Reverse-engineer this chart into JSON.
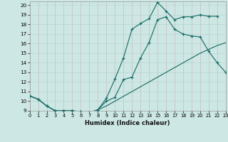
{
  "xlabel": "Humidex (Indice chaleur)",
  "background_color": "#cde8e4",
  "grid_color": "#b2d0cc",
  "line_color": "#1e6e6a",
  "xlim": [
    0,
    23
  ],
  "ylim": [
    9,
    20.4
  ],
  "xticks": [
    0,
    1,
    2,
    3,
    4,
    5,
    6,
    7,
    8,
    9,
    10,
    11,
    12,
    13,
    14,
    15,
    16,
    17,
    18,
    19,
    20,
    21,
    22,
    23
  ],
  "yticks": [
    9,
    10,
    11,
    12,
    13,
    14,
    15,
    16,
    17,
    18,
    19,
    20
  ],
  "line_top": {
    "x": [
      0,
      1,
      2,
      3,
      4,
      5,
      6,
      7,
      8,
      9,
      10,
      11,
      12,
      13,
      14,
      15,
      16,
      17,
      18,
      19,
      20,
      21,
      22
    ],
    "y": [
      10.55,
      10.2,
      9.5,
      9.0,
      9.0,
      9.0,
      8.9,
      8.8,
      9.1,
      10.3,
      12.3,
      14.5,
      17.5,
      18.1,
      18.6,
      20.3,
      19.4,
      18.5,
      18.8,
      18.8,
      19.0,
      18.85,
      18.85
    ]
  },
  "line_mid": {
    "x": [
      0,
      1,
      2,
      3,
      4,
      5,
      6,
      7,
      8,
      9,
      10,
      11,
      12,
      13,
      14,
      15,
      16,
      17,
      18,
      19,
      20,
      21,
      22,
      23
    ],
    "y": [
      10.55,
      10.2,
      9.5,
      9.0,
      9.0,
      9.0,
      8.9,
      8.8,
      9.1,
      10.0,
      10.4,
      12.25,
      12.5,
      14.5,
      16.1,
      18.5,
      18.8,
      17.5,
      17.0,
      16.8,
      16.7,
      15.2,
      14.0,
      13.0
    ]
  },
  "line_bot": {
    "x": [
      0,
      1,
      2,
      3,
      4,
      5,
      6,
      7,
      8,
      9,
      10,
      11,
      12,
      13,
      14,
      15,
      16,
      17,
      18,
      19,
      20,
      21,
      22,
      23
    ],
    "y": [
      10.55,
      10.2,
      9.5,
      9.0,
      9.0,
      9.0,
      8.9,
      8.8,
      9.1,
      9.5,
      10.0,
      10.5,
      11.0,
      11.5,
      12.0,
      12.5,
      13.0,
      13.5,
      14.0,
      14.5,
      15.0,
      15.4,
      15.8,
      16.1
    ]
  }
}
